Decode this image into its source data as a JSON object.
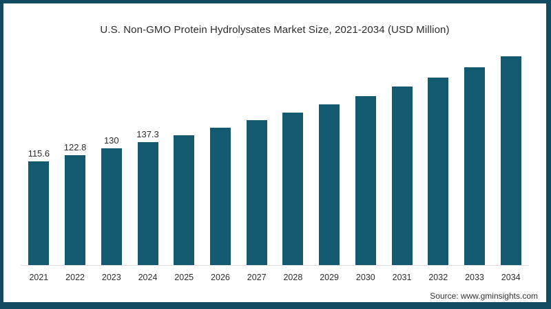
{
  "frame": {
    "border_color": "#114a61",
    "background": "#ffffff"
  },
  "chart_data": {
    "type": "bar",
    "title": "U.S. Non-GMO Protein Hydrolysates Market Size, 2021-2034 (USD Million)",
    "unit": "USD Million",
    "categories": [
      "2021",
      "2022",
      "2023",
      "2024",
      "2025",
      "2026",
      "2027",
      "2028",
      "2029",
      "2030",
      "2031",
      "2032",
      "2033",
      "2034"
    ],
    "values": [
      115.6,
      122.8,
      130,
      137.3,
      144.4,
      153.0,
      161.4,
      170.2,
      179.0,
      188.3,
      199.1,
      209.2,
      220.1,
      232.6
    ],
    "data_labels": [
      "115.6",
      "122.8",
      "130",
      "137.3",
      null,
      null,
      null,
      null,
      null,
      null,
      null,
      null,
      null,
      null
    ],
    "bar_color": "#135a71",
    "axis_line_color": "#dddddd",
    "text_color": "#2d2d2d",
    "xlabel": "",
    "ylabel": "",
    "ylim": [
      0,
      240
    ],
    "grid": false,
    "legend": false
  },
  "footer": {
    "source": "Source: www.gminsights.com"
  }
}
